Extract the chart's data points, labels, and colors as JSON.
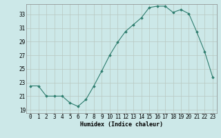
{
  "x": [
    0,
    1,
    2,
    3,
    4,
    5,
    6,
    7,
    8,
    9,
    10,
    11,
    12,
    13,
    14,
    15,
    16,
    17,
    18,
    19,
    20,
    21,
    22,
    23
  ],
  "y": [
    22.5,
    22.5,
    21.0,
    21.0,
    21.0,
    20.0,
    19.5,
    20.5,
    22.5,
    24.7,
    27.0,
    28.9,
    30.5,
    31.5,
    32.5,
    34.0,
    34.2,
    34.2,
    33.3,
    33.7,
    33.1,
    30.4,
    27.5,
    23.8
  ],
  "line_color": "#2e7d6e",
  "marker": "D",
  "marker_size": 1.8,
  "bg_color": "#cce8e8",
  "grid_color_major": "#b0c8c8",
  "grid_color_minor": "#c8dada",
  "xlabel": "Humidex (Indice chaleur)",
  "ylim": [
    18.5,
    34.5
  ],
  "yticks": [
    19,
    21,
    23,
    25,
    27,
    29,
    31,
    33
  ],
  "xticks": [
    0,
    1,
    2,
    3,
    4,
    5,
    6,
    7,
    8,
    9,
    10,
    11,
    12,
    13,
    14,
    15,
    16,
    17,
    18,
    19,
    20,
    21,
    22,
    23
  ],
  "axis_fontsize": 6.0,
  "tick_fontsize": 5.5,
  "linewidth": 0.8
}
